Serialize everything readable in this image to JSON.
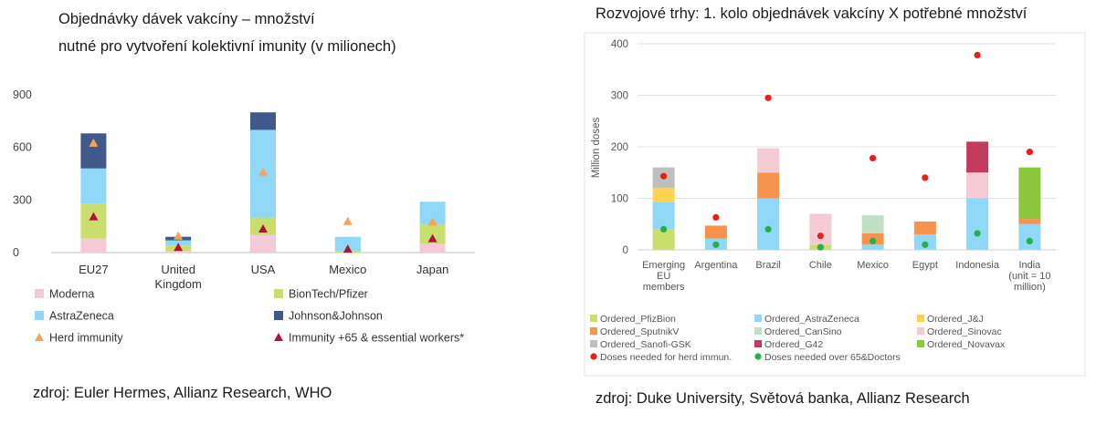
{
  "left": {
    "title_line1": "Objednávky dávek vakcíny –  množství",
    "title_line2": "nutné pro vytvoření kolektivní imunity (v milionech)",
    "source": "zdroj: Euler Hermes, Allianz Research, WHO"
  },
  "right": {
    "title": "Rozvojové trhy: 1. kolo objednávek vakcíny X potřebné množství",
    "source": "zdroj: Duke University, Světová banka, Allianz Research"
  },
  "chart_data": [
    {
      "type": "bar",
      "stacked": true,
      "categories": [
        "EU27",
        "United Kingdom",
        "USA",
        "Mexico",
        "Japan"
      ],
      "category_lines": [
        [
          "EU27"
        ],
        [
          "United",
          "Kingdom"
        ],
        [
          "USA"
        ],
        [
          "Mexico"
        ],
        [
          "Japan"
        ]
      ],
      "yticks": [
        0,
        300,
        600,
        900
      ],
      "ylim": [
        0,
        900
      ],
      "grid": false,
      "series": [
        {
          "name": "Moderna",
          "color": "#f4cbd5",
          "values": [
            80,
            10,
            100,
            0,
            50
          ]
        },
        {
          "name": "BionTech/Pfizer",
          "color": "#c9de6c",
          "values": [
            200,
            30,
            100,
            10,
            110
          ]
        },
        {
          "name": "AstraZeneca",
          "color": "#8fd8f8",
          "values": [
            200,
            30,
            500,
            80,
            130
          ]
        },
        {
          "name": "Johnson&Johnson",
          "color": "#3f5a8a",
          "values": [
            200,
            20,
            100,
            0,
            0
          ]
        }
      ],
      "markers": [
        {
          "name": "Herd immunity",
          "color": "#f4a35b",
          "shape": "triangle",
          "values": [
            625,
            95,
            460,
            178,
            175
          ]
        },
        {
          "name": "Immunity +65 & essential workers*",
          "color": "#b0123a",
          "shape": "triangle",
          "values": [
            205,
            30,
            135,
            20,
            80
          ]
        }
      ],
      "legend_position": "bottom"
    },
    {
      "type": "bar",
      "stacked": true,
      "categories": [
        "Emerging EU members",
        "Argentina",
        "Brazil",
        "Chile",
        "Mexico",
        "Egypt",
        "Indonesia",
        "India (unit = 10 million)"
      ],
      "category_lines": [
        [
          "Emerging",
          "EU",
          "members"
        ],
        [
          "Argentina"
        ],
        [
          "Brazil"
        ],
        [
          "Chile"
        ],
        [
          "Mexico"
        ],
        [
          "Egypt"
        ],
        [
          "Indonesia"
        ],
        [
          "India",
          "(unit = 10",
          "million)"
        ]
      ],
      "ylabel": "Million doses",
      "yticks": [
        0,
        100,
        200,
        300,
        400
      ],
      "ylim": [
        0,
        400
      ],
      "grid": true,
      "series": [
        {
          "name": "Ordered_PfizBion",
          "color": "#c9de6c",
          "values": [
            40,
            0,
            0,
            10,
            0,
            0,
            0,
            0
          ]
        },
        {
          "name": "Ordered_AstraZeneca",
          "color": "#8fd8f8",
          "values": [
            52,
            22,
            100,
            0,
            10,
            30,
            100,
            50
          ]
        },
        {
          "name": "Ordered_J&J",
          "color": "#ffd34d",
          "values": [
            28,
            0,
            0,
            0,
            0,
            0,
            0,
            0
          ]
        },
        {
          "name": "Ordered_SputnikV",
          "color": "#f7934f",
          "values": [
            0,
            25,
            50,
            0,
            22,
            25,
            0,
            10
          ]
        },
        {
          "name": "Ordered_CanSino",
          "color": "#bfe0c3",
          "values": [
            0,
            0,
            0,
            0,
            35,
            0,
            0,
            0
          ]
        },
        {
          "name": "Ordered_Sinovac",
          "color": "#f4cbd5",
          "values": [
            0,
            0,
            47,
            60,
            0,
            0,
            50,
            0
          ]
        },
        {
          "name": "Ordered_Sanofi-GSK",
          "color": "#bfbfbf",
          "values": [
            40,
            0,
            0,
            0,
            0,
            0,
            0,
            0
          ]
        },
        {
          "name": "Ordered_G42",
          "color": "#c23a5c",
          "values": [
            0,
            0,
            0,
            0,
            0,
            0,
            60,
            0
          ]
        },
        {
          "name": "Ordered_Novavax",
          "color": "#8cc63e",
          "values": [
            0,
            0,
            0,
            0,
            0,
            0,
            0,
            100
          ]
        }
      ],
      "markers": [
        {
          "name": "Doses needed for herd immun.",
          "color": "#e8201c",
          "shape": "circle",
          "values": [
            143,
            63,
            295,
            27,
            178,
            140,
            378,
            190
          ]
        },
        {
          "name": "Doses needed over 65&Doctors",
          "color": "#25b04b",
          "shape": "circle",
          "values": [
            40,
            10,
            40,
            5,
            17,
            10,
            32,
            17
          ]
        }
      ],
      "legend_position": "bottom"
    }
  ]
}
